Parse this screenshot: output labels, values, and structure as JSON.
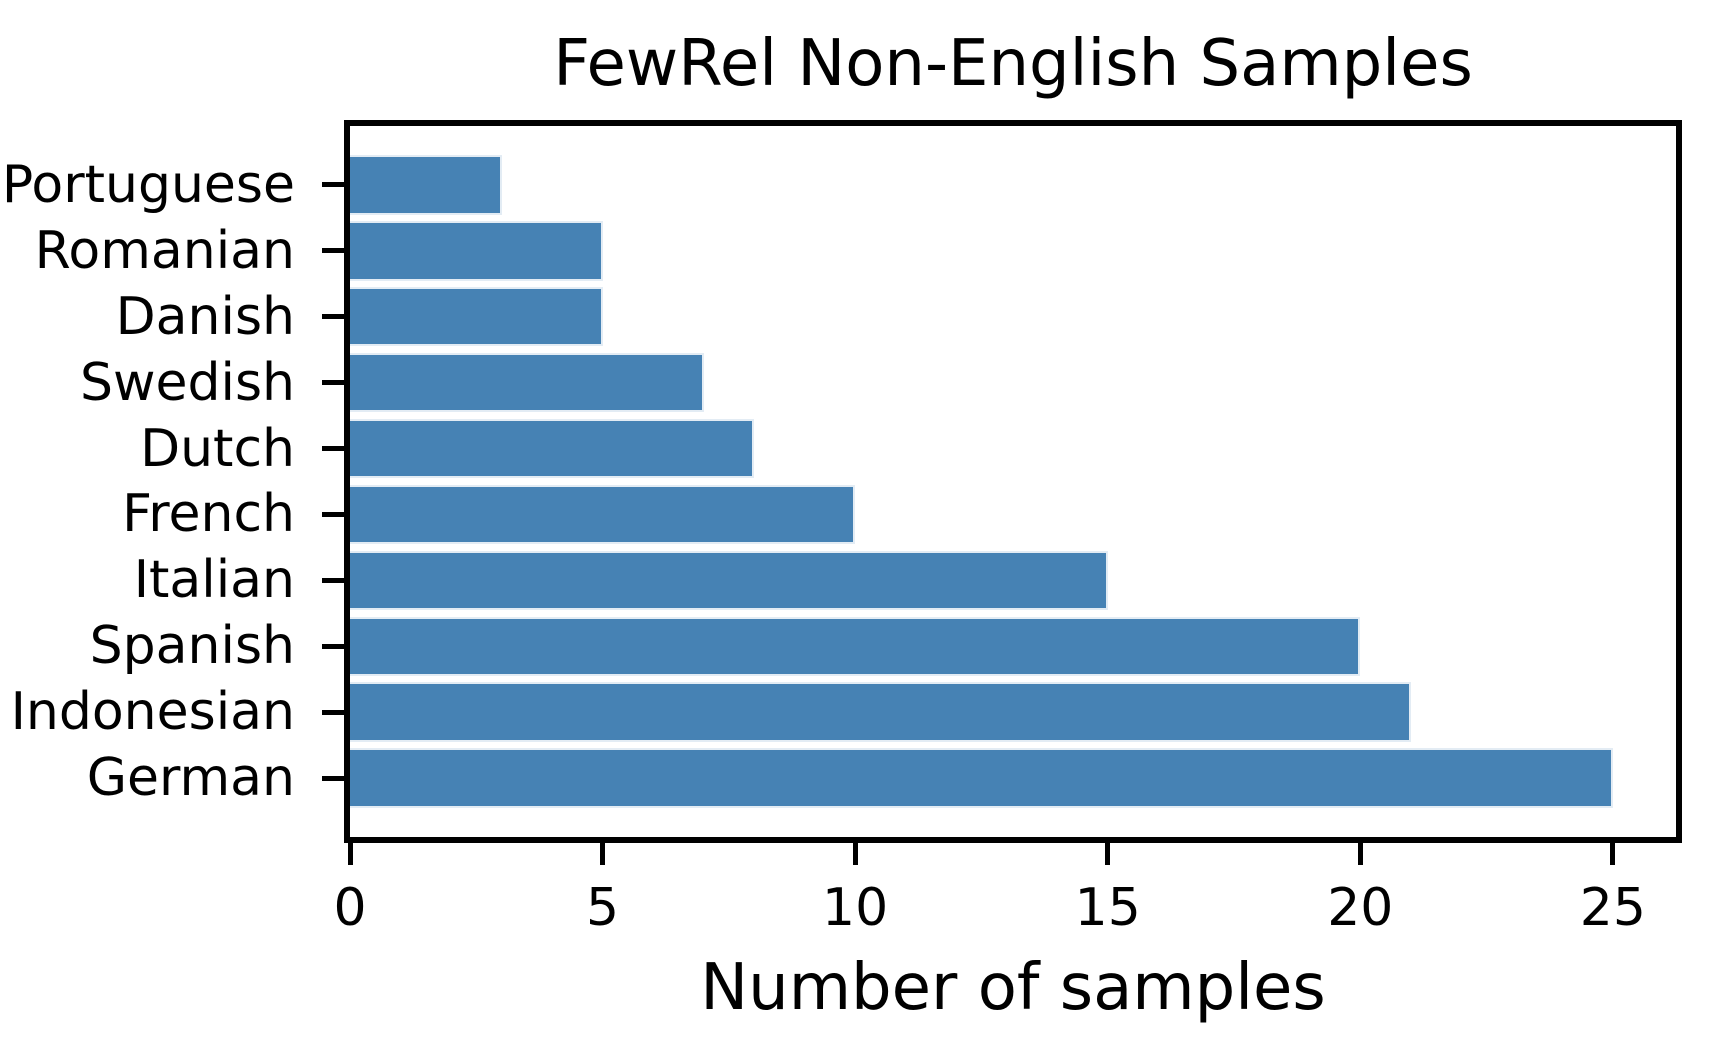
{
  "chart_data": {
    "type": "bar",
    "orientation": "horizontal",
    "title": "FewRel Non-English Samples",
    "xlabel": "Number of samples",
    "ylabel": "",
    "categories": [
      "Portuguese",
      "Romanian",
      "Danish",
      "Swedish",
      "Dutch",
      "French",
      "Italian",
      "Spanish",
      "Indonesian",
      "German"
    ],
    "values": [
      3,
      5,
      5,
      7,
      8,
      10,
      15,
      20,
      21,
      25
    ],
    "xticks": [
      0,
      5,
      10,
      15,
      20,
      25
    ],
    "xlim": [
      0,
      26.25
    ],
    "grid": false,
    "legend": "none",
    "bar_color": "#4682B4",
    "axis_color": "#000000",
    "background_color": "#ffffff"
  }
}
